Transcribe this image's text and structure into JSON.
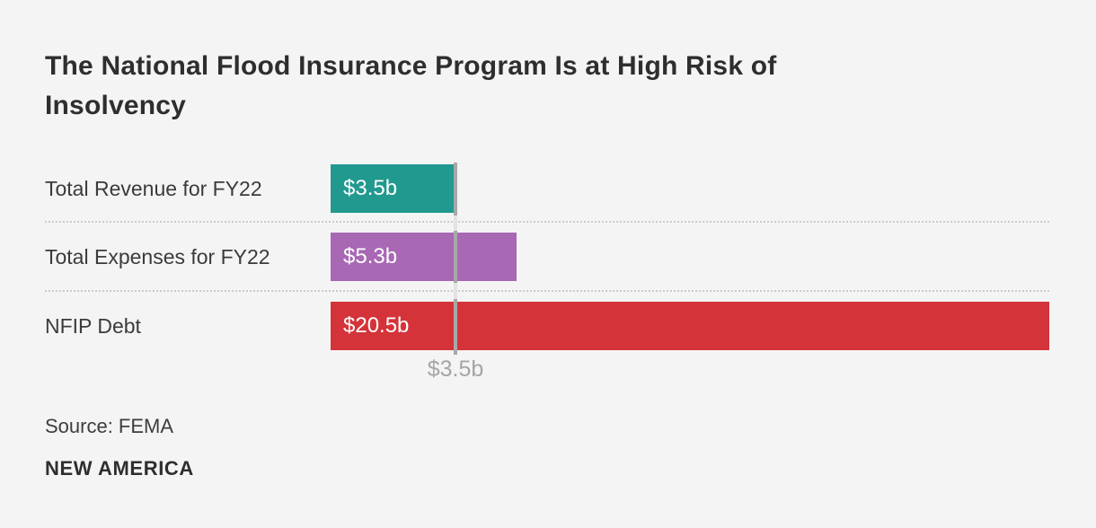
{
  "title": "The National Flood Insurance Program Is at High Risk of\nInsolvency",
  "source": "Source: FEMA",
  "brand": "NEW AMERICA",
  "chart_data": {
    "type": "bar",
    "orientation": "horizontal",
    "title": "The National Flood Insurance Program Is at High Risk of Insolvency",
    "categories": [
      "Total Revenue for FY22",
      "Total Expenses for FY22",
      "NFIP Debt"
    ],
    "values": [
      3.5,
      5.3,
      20.5
    ],
    "value_labels": [
      "$3.5b",
      "$5.3b",
      "$20.5b"
    ],
    "bar_colors": [
      "#21998f",
      "#a868b4",
      "#d5333a"
    ],
    "unit": "billions of dollars",
    "xlim": [
      0,
      20.5
    ],
    "grid": "dotted row separators",
    "reference_line": {
      "value": 3.5,
      "label": "$3.5b",
      "color": "#a8a8a8"
    },
    "source": "Source: FEMA",
    "legend": "none"
  },
  "colors": {
    "background": "#f4f4f5",
    "title_text": "#2e2e2e",
    "label_text": "#3b3b3b",
    "bar_value_text": "#ffffff",
    "separator": "#cbcbcb",
    "reference_line": "#a8a8a8",
    "reference_label": "#a5a5a5"
  }
}
